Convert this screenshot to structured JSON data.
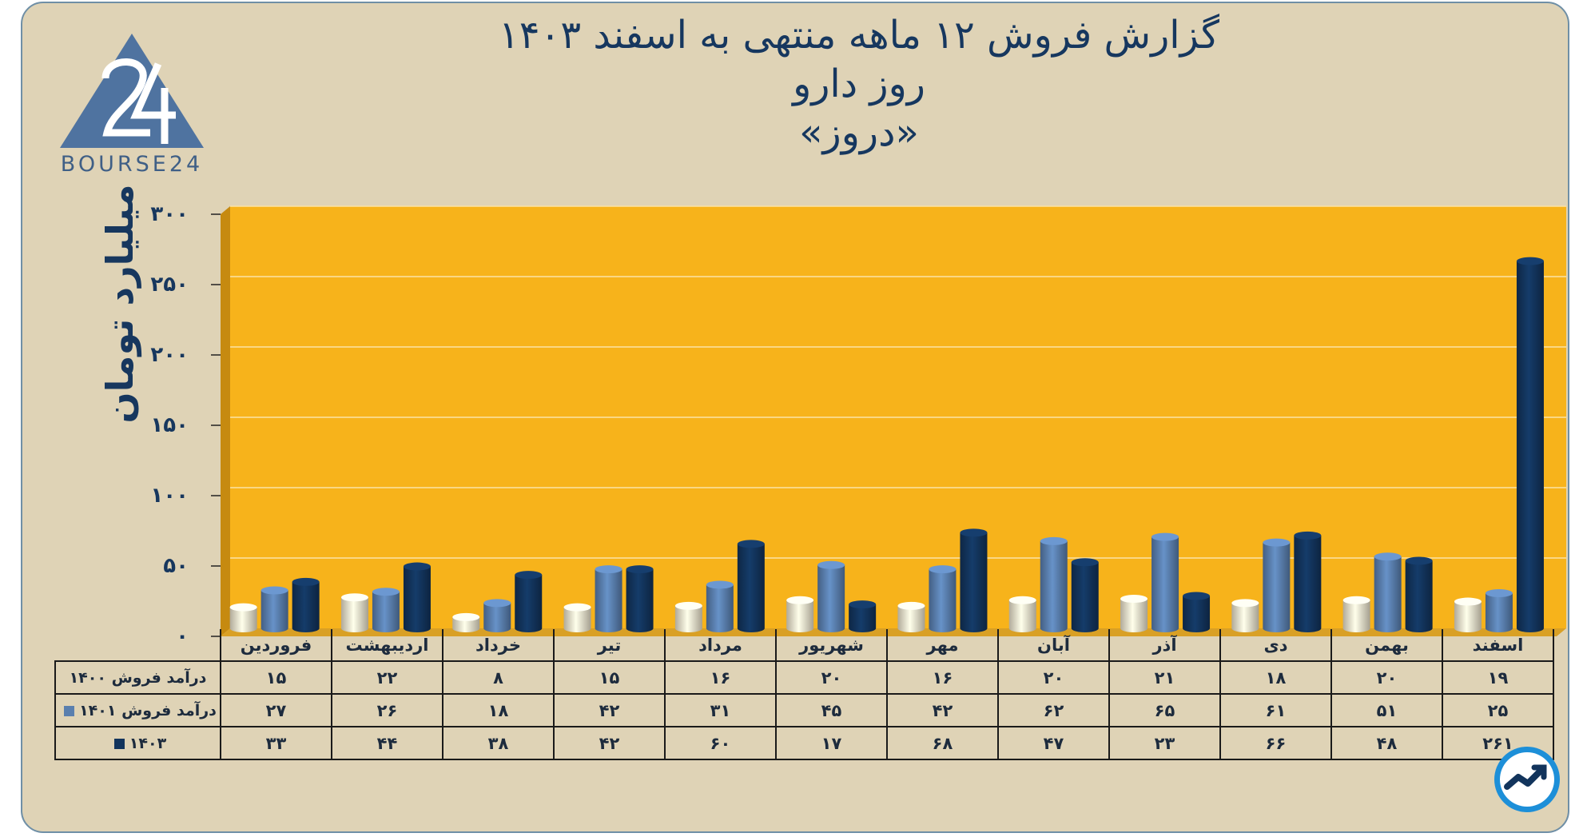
{
  "title": "گزارش  فروش ۱۲ ماهه منتهی به اسفند ۱۴۰۳",
  "subtitle": "روز دارو",
  "symbol": "«دروز»",
  "logo_text": "BOURSE24",
  "colors": {
    "background": "#dfd3b6",
    "plot": "#f7b31b",
    "series_1400": "#ece3cc",
    "series_1401": "#5a7fae",
    "series_1403": "#12345c"
  },
  "chart_data": {
    "type": "bar",
    "ylabel": "میلیارد تومان",
    "ylim": [
      0,
      300
    ],
    "yticks": [
      "۰",
      "۵۰",
      "۱۰۰",
      "۱۵۰",
      "۲۰۰",
      "۲۵۰",
      "۳۰۰"
    ],
    "grid": true,
    "categories": [
      "فروردین",
      "اردیبهشت",
      "خرداد",
      "تیر",
      "مرداد",
      "شهریور",
      "مهر",
      "آبان",
      "آذر",
      "دی",
      "بهمن",
      "اسفند"
    ],
    "series": [
      {
        "name": "درآمد فروش ۱۴۰۰",
        "values": [
          15,
          22,
          8,
          15,
          16,
          20,
          16,
          20,
          21,
          18,
          20,
          19
        ],
        "labels": [
          "۱۵",
          "۲۲",
          "۸",
          "۱۵",
          "۱۶",
          "۲۰",
          "۱۶",
          "۲۰",
          "۲۱",
          "۱۸",
          "۲۰",
          "۱۹"
        ]
      },
      {
        "name": "درآمد فروش ۱۴۰۱",
        "values": [
          27,
          26,
          18,
          42,
          31,
          45,
          42,
          62,
          65,
          61,
          51,
          25
        ],
        "labels": [
          "۲۷",
          "۲۶",
          "۱۸",
          "۴۲",
          "۳۱",
          "۴۵",
          "۴۲",
          "۶۲",
          "۶۵",
          "۶۱",
          "۵۱",
          "۲۵"
        ]
      },
      {
        "name": "۱۴۰۳",
        "values": [
          33,
          44,
          38,
          42,
          60,
          17,
          68,
          47,
          23,
          66,
          48,
          261
        ],
        "labels": [
          "۳۳",
          "۴۴",
          "۳۸",
          "۴۲",
          "۶۰",
          "۱۷",
          "۶۸",
          "۴۷",
          "۲۳",
          "۶۶",
          "۴۸",
          "۲۶۱"
        ]
      }
    ]
  }
}
